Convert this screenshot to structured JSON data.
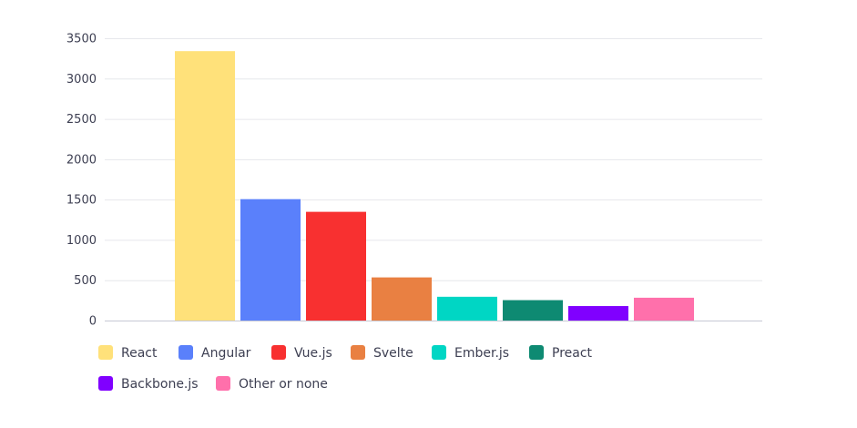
{
  "chart_data": {
    "type": "bar",
    "title": "",
    "xlabel": "",
    "ylabel": "",
    "ylim": [
      0,
      3500
    ],
    "yticks": [
      0,
      500,
      1000,
      1500,
      2000,
      2500,
      3000,
      3500
    ],
    "grid": true,
    "legend_position": "bottom-left",
    "series": [
      {
        "name": "React",
        "value": 3340,
        "color": "#FFE17A"
      },
      {
        "name": "Angular",
        "value": 1505,
        "color": "#5A80FB"
      },
      {
        "name": "Vue.js",
        "value": 1348,
        "color": "#F83030"
      },
      {
        "name": "Svelte",
        "value": 535,
        "color": "#E98042"
      },
      {
        "name": "Ember.js",
        "value": 295,
        "color": "#00D6C4"
      },
      {
        "name": "Preact",
        "value": 253,
        "color": "#0E8A72"
      },
      {
        "name": "Backbone.js",
        "value": 180,
        "color": "#8000FF"
      },
      {
        "name": "Other or none",
        "value": 283,
        "color": "#FF70AB"
      }
    ]
  }
}
